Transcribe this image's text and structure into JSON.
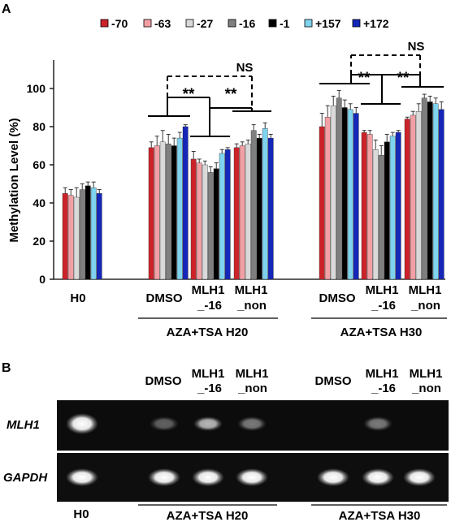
{
  "panel_a": {
    "label": "A",
    "ylabel": "Methylation Level (%)",
    "yticks": [
      "0",
      "20",
      "40",
      "60",
      "80",
      "100"
    ],
    "sig_labels": [
      "**",
      "**",
      "NS",
      "**",
      "**",
      "NS"
    ],
    "group_labels": {
      "h0": "H0",
      "dmso_h20": "DMSO",
      "mlh16_h20_1": "MLH1",
      "mlh16_h20_2": "_-16",
      "mlhnon_h20_1": "MLH1",
      "mlhnon_h20_2": "_non",
      "dmso_h30": "DMSO",
      "mlh16_h30_1": "MLH1",
      "mlh16_h30_2": "_-16",
      "mlhnon_h30_1": "MLH1",
      "mlhnon_h30_2": "_non"
    },
    "treatments": {
      "h20": "AZA+TSA H20",
      "h30": "AZA+TSA H30"
    }
  },
  "chart_data": {
    "type": "bar",
    "ylabel": "Methylation Level (%)",
    "ylim": [
      0,
      110
    ],
    "legend": "top",
    "categories": [
      "H0",
      "DMSO",
      "MLH1_-16",
      "MLH1_non",
      "DMSO",
      "MLH1_-16",
      "MLH1_non"
    ],
    "category_groups": [
      "",
      "AZA+TSA H20",
      "AZA+TSA H20",
      "AZA+TSA H20",
      "AZA+TSA H30",
      "AZA+TSA H30",
      "AZA+TSA H30"
    ],
    "series": [
      {
        "name": "-70",
        "color": "#cc2229",
        "values": [
          45,
          69,
          63,
          69,
          80,
          77,
          84
        ],
        "errors": [
          3,
          3,
          4,
          2,
          7,
          1,
          1
        ]
      },
      {
        "name": "-63",
        "color": "#f2a0a5",
        "values": [
          44,
          70,
          61,
          70,
          85,
          76,
          86
        ],
        "errors": [
          3,
          5,
          2,
          2,
          6,
          2,
          2
        ]
      },
      {
        "name": "-27",
        "color": "#d9d9d9",
        "values": [
          43,
          72,
          60,
          71,
          91,
          68,
          88
        ],
        "errors": [
          5,
          6,
          2,
          2,
          5,
          5,
          4
        ]
      },
      {
        "name": "-16",
        "color": "#7f7f7f",
        "values": [
          47,
          71,
          56,
          78,
          95,
          65,
          95
        ],
        "errors": [
          3,
          5,
          3,
          3,
          4,
          5,
          2
        ]
      },
      {
        "name": "-1",
        "color": "#000000",
        "values": [
          49,
          70,
          58,
          74,
          90,
          72,
          93
        ],
        "errors": [
          2,
          4,
          3,
          2,
          4,
          4,
          3
        ]
      },
      {
        "name": "+157",
        "color": "#7fd3ef",
        "values": [
          48,
          74,
          66,
          79,
          89,
          75,
          92
        ],
        "errors": [
          3,
          3,
          2,
          3,
          3,
          2,
          3
        ]
      },
      {
        "name": "+172",
        "color": "#1427b8",
        "values": [
          45,
          80,
          68,
          74,
          87,
          77,
          89
        ],
        "errors": [
          2,
          1,
          1,
          2,
          3,
          1,
          4
        ]
      }
    ]
  },
  "panel_b": {
    "label": "B",
    "lane_headers": [
      "DMSO",
      "MLH1",
      "_-16",
      "MLH1",
      "_non",
      "DMSO",
      "MLH1",
      "_-16",
      "MLH1",
      "_non"
    ],
    "gene_labels": [
      "MLH1",
      "GAPDH"
    ],
    "bottom_labels": [
      "H0",
      "AZA+TSA H20",
      "AZA+TSA H30"
    ],
    "mlh1_band_intensity": [
      1.0,
      0.35,
      0.7,
      0.45,
      0,
      0.45,
      0
    ],
    "gapdh_band_intensity": [
      1.0,
      1.0,
      1.0,
      1.0,
      1.0,
      1.0,
      1.0
    ]
  }
}
